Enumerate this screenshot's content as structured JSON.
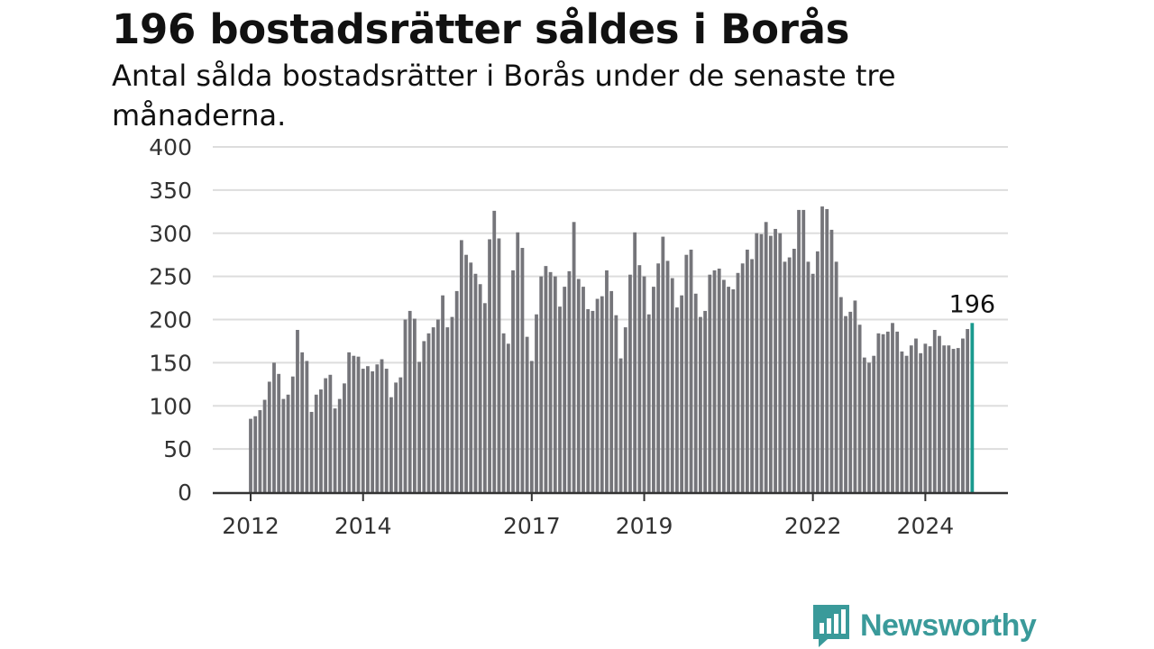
{
  "header": {
    "title": "196 bostadsrätter såldes i Borås",
    "subtitle": "Antal sålda bostadsrätter i Borås under de senaste tre månaderna."
  },
  "brand": {
    "name": "Newsworthy",
    "icon": "bar-chart-speech-icon",
    "color": "#3a9a9a"
  },
  "colors": {
    "bar": "#75757a",
    "highlight": "#1a9a8e",
    "grid": "#dddddd",
    "axis": "#333333"
  },
  "chart_data": {
    "type": "bar",
    "title": "196 bostadsrätter såldes i Borås",
    "subtitle": "Antal sålda bostadsrätter i Borås under de senaste tre månaderna.",
    "xlabel": "",
    "ylabel": "",
    "ylim": [
      0,
      400
    ],
    "yticks": [
      0,
      50,
      100,
      150,
      200,
      250,
      300,
      350,
      400
    ],
    "xticks": [
      {
        "label": "2012",
        "index": 0
      },
      {
        "label": "2014",
        "index": 24
      },
      {
        "label": "2017",
        "index": 60
      },
      {
        "label": "2019",
        "index": 84
      },
      {
        "label": "2022",
        "index": 120
      },
      {
        "label": "2024",
        "index": 144
      }
    ],
    "grid": true,
    "highlight_last": true,
    "last_label": "196",
    "start": "2012-01",
    "frequency": "monthly",
    "values": [
      85,
      88,
      95,
      107,
      128,
      150,
      137,
      108,
      113,
      134,
      188,
      162,
      152,
      93,
      113,
      119,
      132,
      136,
      97,
      108,
      126,
      162,
      158,
      157,
      143,
      146,
      140,
      148,
      154,
      143,
      110,
      127,
      133,
      200,
      210,
      201,
      151,
      175,
      184,
      191,
      200,
      228,
      191,
      203,
      233,
      292,
      275,
      266,
      253,
      241,
      219,
      293,
      326,
      294,
      184,
      172,
      257,
      301,
      283,
      180,
      152,
      206,
      250,
      262,
      255,
      250,
      215,
      238,
      256,
      313,
      247,
      238,
      212,
      210,
      224,
      227,
      257,
      233,
      205,
      155,
      191,
      252,
      301,
      263,
      250,
      206,
      238,
      265,
      296,
      268,
      248,
      214,
      228,
      275,
      281,
      230,
      203,
      210,
      252,
      257,
      259,
      246,
      238,
      235,
      254,
      265,
      281,
      270,
      300,
      299,
      313,
      297,
      305,
      300,
      267,
      272,
      282,
      327,
      327,
      267,
      253,
      279,
      331,
      328,
      304,
      267,
      226,
      204,
      209,
      222,
      194,
      156,
      150,
      158,
      184,
      183,
      186,
      196,
      186,
      163,
      158,
      170,
      178,
      161,
      172,
      169,
      188,
      181,
      170,
      170,
      166,
      167,
      178,
      189,
      196
    ]
  }
}
